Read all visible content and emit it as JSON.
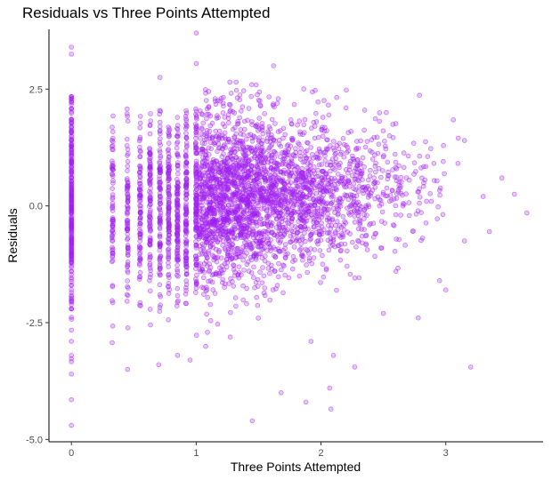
{
  "chart_data": {
    "type": "scatter",
    "title": "Residuals vs Three Points Attempted",
    "xlabel": "Three Points Attempted",
    "ylabel": "Residuals",
    "xlim": [
      -0.18,
      3.78
    ],
    "ylim": [
      -5.05,
      3.78
    ],
    "x_ticks": [
      0,
      1,
      2,
      3
    ],
    "x_tick_labels": [
      "0",
      "1",
      "2",
      "3"
    ],
    "y_ticks": [
      2.5,
      0.0,
      -2.5,
      -5.0
    ],
    "y_tick_labels": [
      "2.5",
      "0.0",
      "-2.5",
      "-5.0"
    ],
    "grid": false,
    "legend": "none",
    "point_color": "#a020f0",
    "point_fill_opacity": 0.25,
    "point_edge_opacity": 0.55,
    "series": [
      {
        "points": [
          [
            0,
            3.4
          ],
          [
            0,
            3.25
          ],
          [
            0,
            2.3
          ],
          [
            0,
            1.0
          ],
          [
            0,
            0.0
          ],
          [
            0,
            -1.0
          ],
          [
            0,
            -2.9
          ],
          [
            0,
            -3.2
          ],
          [
            0,
            -3.6
          ],
          [
            0,
            -4.15
          ],
          [
            0,
            -4.7
          ],
          [
            1,
            3.7
          ],
          [
            1,
            3.05
          ],
          [
            0.71,
            2.75
          ],
          [
            1.62,
            3.0
          ],
          [
            1.27,
            2.65
          ],
          [
            1.32,
            2.65
          ],
          [
            1.51,
            2.25
          ],
          [
            3.45,
            0.6
          ],
          [
            3.55,
            0.25
          ],
          [
            3.65,
            -0.15
          ],
          [
            3.35,
            -0.55
          ],
          [
            3.1,
            1.45
          ],
          [
            3.15,
            1.4
          ],
          [
            3.15,
            -0.75
          ],
          [
            3.2,
            -3.45
          ],
          [
            1.45,
            -4.6
          ],
          [
            1.68,
            -4.0
          ],
          [
            1.88,
            -4.2
          ],
          [
            2.07,
            -3.9
          ],
          [
            2.08,
            -4.35
          ],
          [
            1.92,
            -2.9
          ],
          [
            2.27,
            -3.45
          ],
          [
            2.1,
            -3.2
          ],
          [
            0.45,
            -3.5
          ],
          [
            0.7,
            -3.4
          ],
          [
            0.95,
            -3.3
          ],
          [
            0.85,
            -3.2
          ],
          [
            2.35,
            2.05
          ],
          [
            2.55,
            1.5
          ],
          [
            2.98,
            0.95
          ],
          [
            2.5,
            -2.3
          ],
          [
            2.78,
            -2.4
          ],
          [
            2.95,
            -1.6
          ],
          [
            3.0,
            -1.8
          ],
          [
            2.6,
            -1.4
          ],
          [
            3.3,
            0.2
          ],
          [
            2.2,
            2.1
          ],
          [
            1.1,
            2.45
          ],
          [
            1.2,
            2.3
          ]
        ]
      }
    ]
  }
}
